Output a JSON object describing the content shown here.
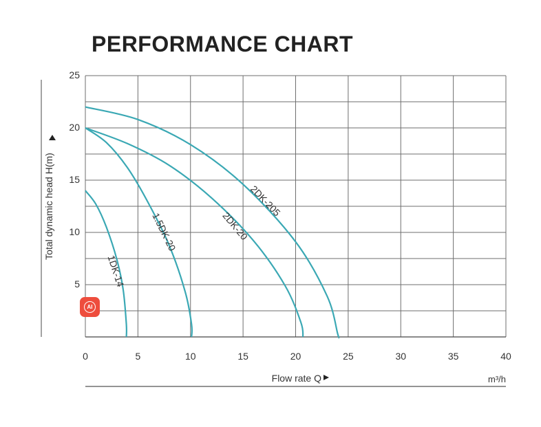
{
  "chart_data": {
    "type": "line",
    "title": "PERFORMANCE CHART",
    "xlabel": "Flow rate Q",
    "ylabel": "Total dynamic head H(m)",
    "x_unit": "m³/h",
    "xlim": [
      0,
      40
    ],
    "ylim": [
      0,
      25
    ],
    "x_ticks": [
      0,
      5,
      10,
      15,
      20,
      25,
      30,
      35,
      40
    ],
    "y_ticks": [
      5,
      10,
      15,
      20,
      25
    ],
    "grid": true,
    "legend": "none",
    "line_color": "#3aa8b4",
    "series": [
      {
        "name": "1DK-14",
        "points": [
          [
            0,
            14
          ],
          [
            1,
            12.7
          ],
          [
            2,
            10.5
          ],
          [
            3,
            7.4
          ],
          [
            3.6,
            4.5
          ],
          [
            3.9,
            1.2
          ],
          [
            3.9,
            0
          ]
        ]
      },
      {
        "name": "1.5DK-20",
        "points": [
          [
            0,
            20
          ],
          [
            2,
            18.6
          ],
          [
            4,
            16.2
          ],
          [
            6,
            12.8
          ],
          [
            8,
            8.7
          ],
          [
            9.5,
            4.3
          ],
          [
            10.1,
            1.2
          ],
          [
            10.1,
            0
          ]
        ]
      },
      {
        "name": "2DK-20",
        "points": [
          [
            0,
            20
          ],
          [
            4,
            18.5
          ],
          [
            8,
            16.4
          ],
          [
            12,
            13.3
          ],
          [
            16,
            9.2
          ],
          [
            19,
            4.9
          ],
          [
            20.5,
            1.4
          ],
          [
            20.7,
            0
          ]
        ]
      },
      {
        "name": "2DK-205",
        "points": [
          [
            0,
            22
          ],
          [
            5,
            20.8
          ],
          [
            10,
            18.4
          ],
          [
            15,
            14.6
          ],
          [
            20,
            9.1
          ],
          [
            23,
            3.9
          ],
          [
            24,
            0.3
          ],
          [
            24.1,
            0
          ]
        ]
      }
    ]
  },
  "badge": {
    "label": "AI"
  }
}
